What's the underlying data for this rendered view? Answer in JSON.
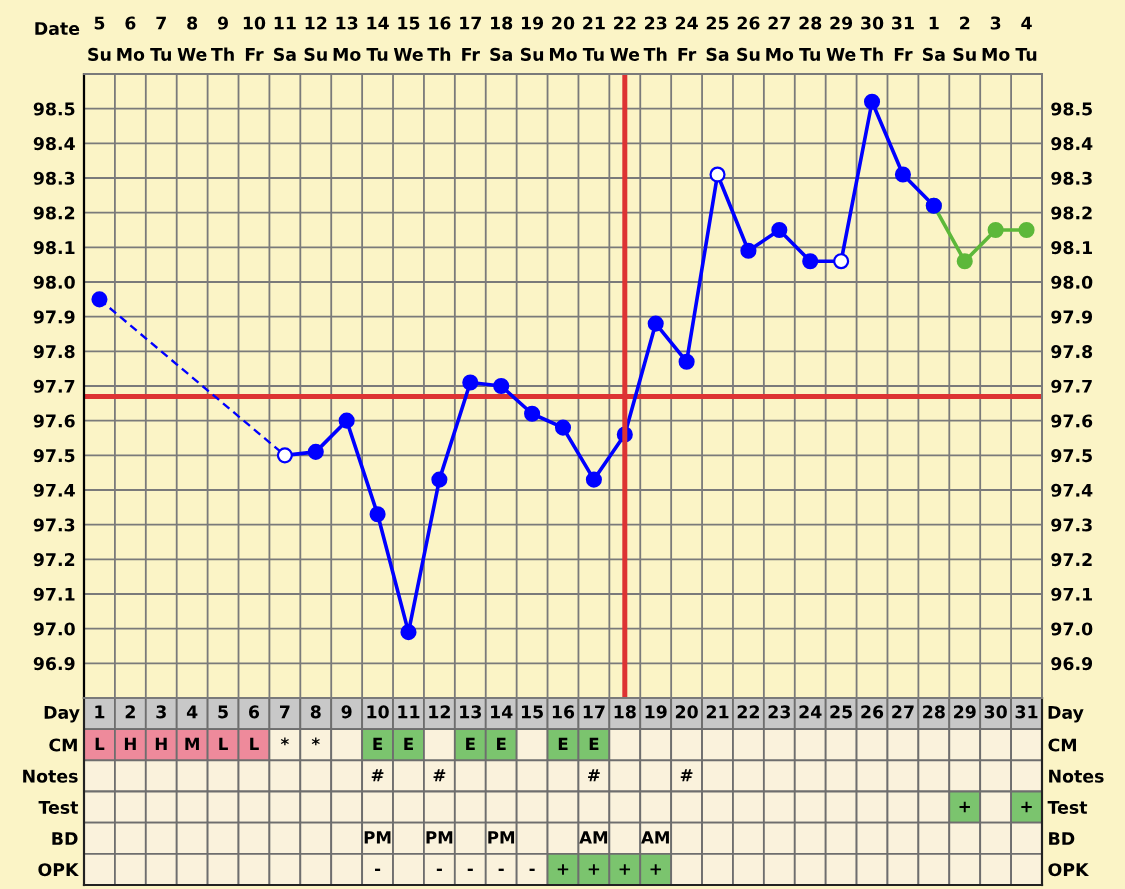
{
  "chart_data": [
    {
      "type": "line",
      "xlabel": "Date",
      "categories": [
        "5\nSu",
        "6\nMo",
        "7\nTu",
        "8\nWe",
        "9\nTh",
        "10\nFr",
        "11\nSa",
        "12\nSu",
        "13\nMo",
        "14\nTu",
        "15\nWe",
        "16\nTh",
        "17\nFr",
        "18\nSa",
        "19\nSu",
        "20\nMo",
        "21\nTu",
        "22\nWe",
        "23\nTh",
        "24\nFr",
        "25\nSa",
        "26\nSu",
        "27\nMo",
        "28\nTu",
        "29\nWe",
        "30\nTh",
        "31\nFr",
        "1\nSa",
        "2\nSu",
        "3\nMo",
        "4\nTu"
      ],
      "x2label": "Day",
      "x2lim": [
        0.5,
        31.5
      ],
      "x2ticks": [
        1,
        2,
        3,
        4,
        5,
        6,
        7,
        8,
        9,
        10,
        11,
        12,
        13,
        14,
        15,
        16,
        17,
        18,
        19,
        20,
        21,
        22,
        23,
        24,
        25,
        26,
        27,
        28,
        29,
        30,
        31
      ],
      "ylim": [
        96.8,
        98.6
      ],
      "yticks": [
        96.9,
        {
          "value": 97.0,
          "label": "97.0"
        },
        97.1,
        97.2,
        97.3,
        97.4,
        97.5,
        97.6,
        97.7,
        97.8,
        97.9,
        {
          "value": 98.0,
          "label": "98.0"
        },
        98.1,
        98.2,
        98.3,
        98.4,
        98.5
      ],
      "y2lim": [
        96.8,
        98.6
      ],
      "y2ticks": [
        96.9,
        {
          "value": 97.0,
          "label": "97.0"
        },
        97.1,
        97.2,
        97.3,
        97.4,
        97.5,
        97.6,
        97.7,
        97.8,
        97.9,
        {
          "value": 98.0,
          "label": "98.0"
        },
        98.1,
        98.2,
        98.3,
        98.4,
        98.5
      ],
      "grid": true,
      "series": [
        {
          "color": "#0000ff",
          "line_style": "dashed",
          "marker": "none",
          "x": [
            "5\nSu",
            "11\nSa"
          ],
          "values": [
            97.95,
            97.5
          ]
        },
        {
          "color": "#5db83a",
          "line_style": "solid",
          "marker": "circle",
          "values": [
            null,
            null,
            null,
            null,
            null,
            null,
            null,
            null,
            null,
            null,
            null,
            null,
            null,
            null,
            null,
            null,
            null,
            null,
            null,
            null,
            null,
            null,
            null,
            null,
            null,
            null,
            null,
            98.22,
            98.06,
            98.15,
            98.15
          ]
        },
        {
          "color": "#0000ff",
          "line_style": "solid",
          "marker": "circle",
          "values": [
            97.95,
            null,
            null,
            null,
            null,
            null,
            97.5,
            97.51,
            97.6,
            97.33,
            96.99,
            97.43,
            97.71,
            97.7,
            97.62,
            97.58,
            97.43,
            97.56,
            97.88,
            97.77,
            98.31,
            98.09,
            98.15,
            98.06,
            98.06,
            98.52,
            98.31,
            98.22,
            null,
            null,
            null
          ],
          "colors": [
            "#0000ff",
            null,
            null,
            null,
            null,
            null,
            "#ffffff",
            "#0000ff",
            "#0000ff",
            "#0000ff",
            "#0000ff",
            "#0000ff",
            "#0000ff",
            "#0000ff",
            "#0000ff",
            "#0000ff",
            "#0000ff",
            "#0000ff",
            "#0000ff",
            "#0000ff",
            "#ffffff",
            "#0000ff",
            "#0000ff",
            "#0000ff",
            "#ffffff",
            "#0000ff",
            "#0000ff",
            "#0000ff",
            null,
            null,
            null
          ]
        }
      ],
      "ref_lines": [
        {
          "axis": "y",
          "value": 97.67,
          "color": "#dd3333"
        },
        {
          "axis": "x2",
          "value": 18,
          "color": "#dd3333"
        }
      ]
    },
    {
      "type": "other",
      "y_categories": [
        "CM",
        "Notes",
        "Test",
        "BD",
        "OPK"
      ],
      "y2_categories": [
        "CM",
        "Notes",
        "Test",
        "BD",
        "OPK"
      ],
      "cell_labels": [
        [
          "L",
          "H",
          "H",
          "M",
          "L",
          "L",
          "*",
          "*",
          null,
          "E",
          "E",
          null,
          "E",
          "E",
          null,
          "E",
          "E",
          null,
          null,
          null,
          null,
          null,
          null,
          null,
          null,
          null,
          null,
          null,
          null,
          null,
          null
        ],
        [
          null,
          null,
          null,
          null,
          null,
          null,
          null,
          null,
          null,
          "#",
          null,
          "#",
          null,
          null,
          null,
          null,
          "#",
          null,
          null,
          "#",
          null,
          null,
          null,
          null,
          null,
          null,
          null,
          null,
          null,
          null,
          null
        ],
        [
          null,
          null,
          null,
          null,
          null,
          null,
          null,
          null,
          null,
          null,
          null,
          null,
          null,
          null,
          null,
          null,
          null,
          null,
          null,
          null,
          null,
          null,
          null,
          null,
          null,
          null,
          null,
          null,
          "+",
          null,
          "+"
        ],
        [
          null,
          null,
          null,
          null,
          null,
          null,
          null,
          null,
          null,
          "PM",
          null,
          "PM",
          null,
          "PM",
          null,
          null,
          "AM",
          null,
          "AM",
          null,
          null,
          null,
          null,
          null,
          null,
          null,
          null,
          null,
          null,
          null,
          null
        ],
        [
          null,
          null,
          null,
          null,
          null,
          null,
          null,
          null,
          null,
          "-",
          null,
          "-",
          "-",
          "-",
          "-",
          "+",
          "+",
          "+",
          "+",
          null,
          null,
          null,
          null,
          null,
          null,
          null,
          null,
          null,
          null,
          null,
          null
        ]
      ],
      "colors": [
        [
          "#ee8a9b",
          "#ee8a9b",
          "#ee8a9b",
          "#ee8a9b",
          "#ee8a9b",
          "#ee8a9b",
          "#faf2dc",
          "#faf2dc",
          "#faf2dc",
          "#7bc46e",
          "#7bc46e",
          "#faf2dc",
          "#7bc46e",
          "#7bc46e",
          "#faf2dc",
          "#7bc46e",
          "#7bc46e",
          "#faf2dc",
          "#faf2dc",
          "#faf2dc",
          "#faf2dc",
          "#faf2dc",
          "#faf2dc",
          "#faf2dc",
          "#faf2dc",
          "#faf2dc",
          "#faf2dc",
          "#faf2dc",
          "#faf2dc",
          "#faf2dc",
          "#faf2dc"
        ],
        [
          "#faf2dc",
          "#faf2dc",
          "#faf2dc",
          "#faf2dc",
          "#faf2dc",
          "#faf2dc",
          "#faf2dc",
          "#faf2dc",
          "#faf2dc",
          "#faf2dc",
          "#faf2dc",
          "#faf2dc",
          "#faf2dc",
          "#faf2dc",
          "#faf2dc",
          "#faf2dc",
          "#faf2dc",
          "#faf2dc",
          "#faf2dc",
          "#faf2dc",
          "#faf2dc",
          "#faf2dc",
          "#faf2dc",
          "#faf2dc",
          "#faf2dc",
          "#faf2dc",
          "#faf2dc",
          "#faf2dc",
          "#faf2dc",
          "#faf2dc",
          "#faf2dc"
        ],
        [
          "#faf2dc",
          "#faf2dc",
          "#faf2dc",
          "#faf2dc",
          "#faf2dc",
          "#faf2dc",
          "#faf2dc",
          "#faf2dc",
          "#faf2dc",
          "#faf2dc",
          "#faf2dc",
          "#faf2dc",
          "#faf2dc",
          "#faf2dc",
          "#faf2dc",
          "#faf2dc",
          "#faf2dc",
          "#faf2dc",
          "#faf2dc",
          "#faf2dc",
          "#faf2dc",
          "#faf2dc",
          "#faf2dc",
          "#faf2dc",
          "#faf2dc",
          "#faf2dc",
          "#faf2dc",
          "#faf2dc",
          "#7bc46e",
          "#faf2dc",
          "#7bc46e"
        ],
        [
          "#faf2dc",
          "#faf2dc",
          "#faf2dc",
          "#faf2dc",
          "#faf2dc",
          "#faf2dc",
          "#faf2dc",
          "#faf2dc",
          "#faf2dc",
          "#faf2dc",
          "#faf2dc",
          "#faf2dc",
          "#faf2dc",
          "#faf2dc",
          "#faf2dc",
          "#faf2dc",
          "#faf2dc",
          "#faf2dc",
          "#faf2dc",
          "#faf2dc",
          "#faf2dc",
          "#faf2dc",
          "#faf2dc",
          "#faf2dc",
          "#faf2dc",
          "#faf2dc",
          "#faf2dc",
          "#faf2dc",
          "#faf2dc",
          "#faf2dc",
          "#faf2dc"
        ],
        [
          "#faf2dc",
          "#faf2dc",
          "#faf2dc",
          "#faf2dc",
          "#faf2dc",
          "#faf2dc",
          "#faf2dc",
          "#faf2dc",
          "#faf2dc",
          "#faf2dc",
          "#faf2dc",
          "#faf2dc",
          "#faf2dc",
          "#faf2dc",
          "#faf2dc",
          "#7bc46e",
          "#7bc46e",
          "#7bc46e",
          "#7bc46e",
          "#faf2dc",
          "#faf2dc",
          "#faf2dc",
          "#faf2dc",
          "#faf2dc",
          "#faf2dc",
          "#faf2dc",
          "#faf2dc",
          "#faf2dc",
          "#faf2dc",
          "#faf2dc",
          "#faf2dc"
        ]
      ]
    }
  ]
}
